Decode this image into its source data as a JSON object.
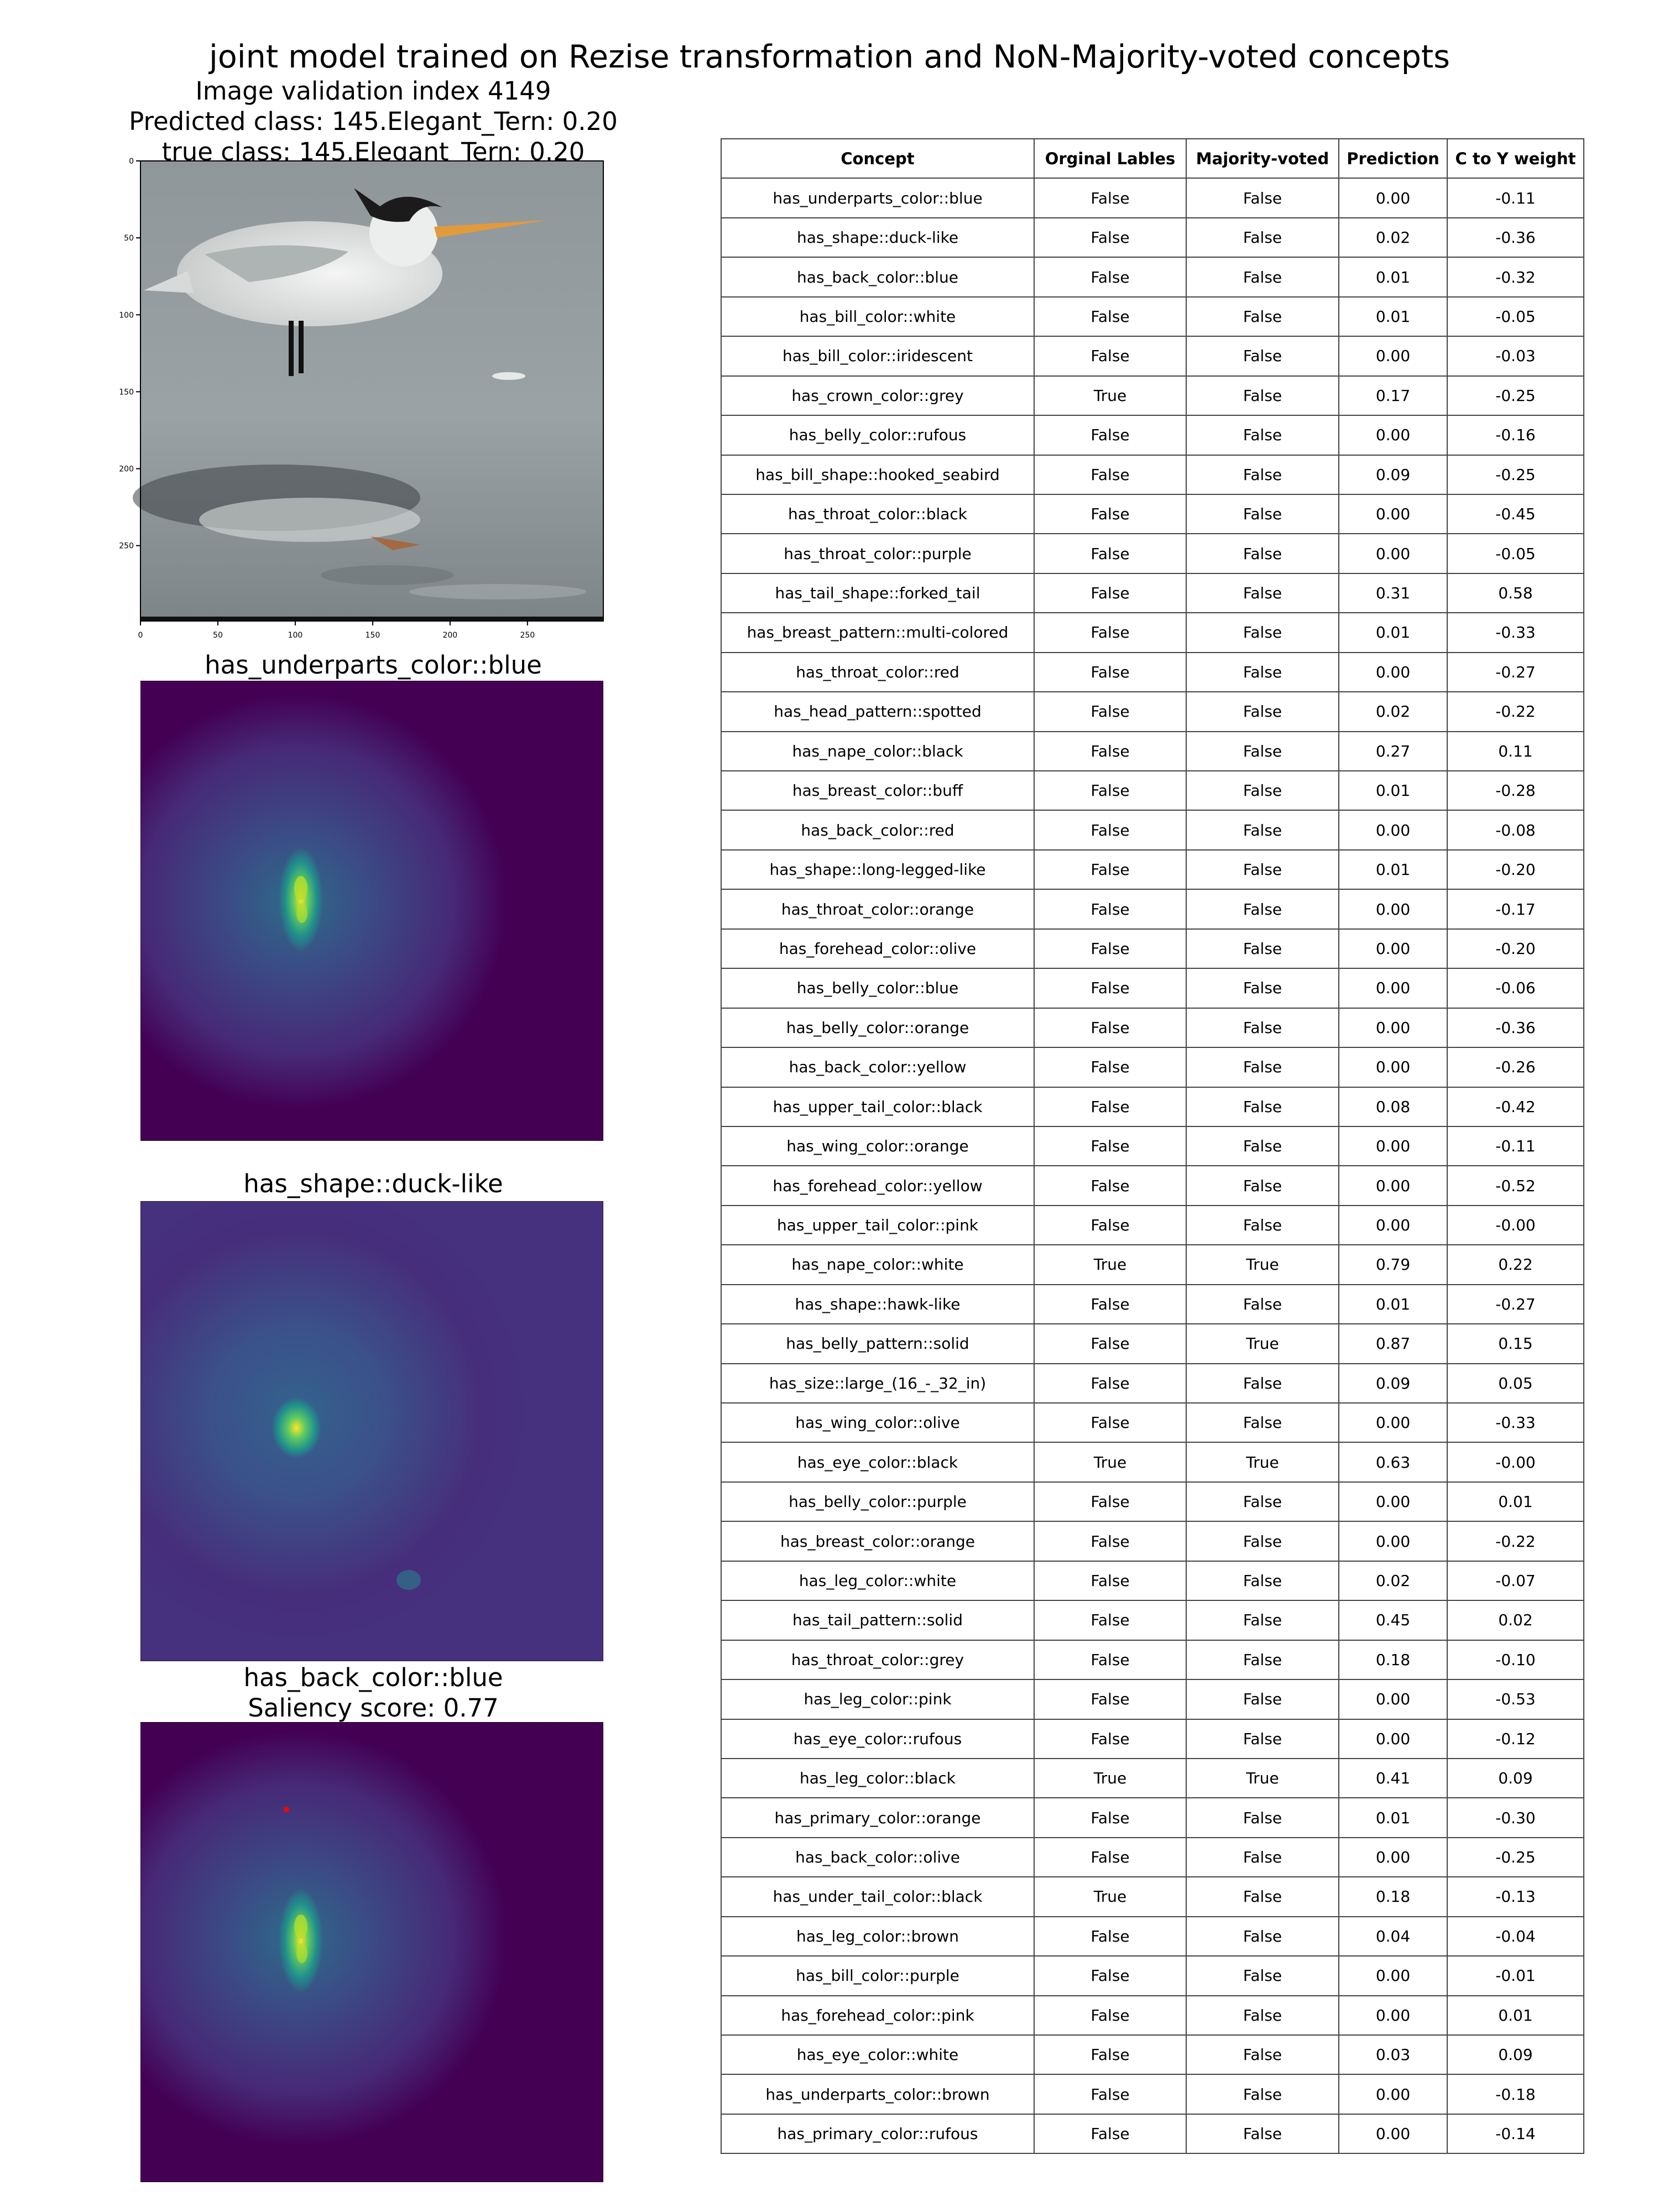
{
  "figure": {
    "title": "joint model trained on Rezise transformation and NoN-Majority-voted concepts",
    "image_header": [
      "Image validation index 4149",
      "Predicted class: 145.Elegant_Tern: 0.20",
      "true class: 145.Elegant_Tern: 0.20"
    ],
    "image_axis": {
      "x_ticks": [
        "0",
        "50",
        "100",
        "150",
        "200",
        "250"
      ],
      "y_ticks": [
        "0",
        "50",
        "100",
        "150",
        "200",
        "250"
      ],
      "xlim": [
        0,
        299
      ],
      "ylim": [
        0,
        299
      ]
    },
    "saliency_maps": [
      {
        "title": "has_underparts_color::blue"
      },
      {
        "title": "has_shape::duck-like"
      },
      {
        "title": "has_back_color::blue",
        "subtitle": "Saliency score: 0.77"
      }
    ],
    "colors": {
      "viridis_dark": "#440154",
      "viridis_mid": "#31688e",
      "viridis_green": "#35b779",
      "viridis_yellow": "#fde725",
      "marker": "#ff0000"
    }
  },
  "chart_data": {
    "type": "table",
    "columns": [
      "Concept",
      "Orginal Lables",
      "Majority-voted",
      "Prediction",
      "C to Y weight"
    ],
    "rows": [
      [
        "has_underparts_color::blue",
        "False",
        "False",
        "0.00",
        "-0.11"
      ],
      [
        "has_shape::duck-like",
        "False",
        "False",
        "0.02",
        "-0.36"
      ],
      [
        "has_back_color::blue",
        "False",
        "False",
        "0.01",
        "-0.32"
      ],
      [
        "has_bill_color::white",
        "False",
        "False",
        "0.01",
        "-0.05"
      ],
      [
        "has_bill_color::iridescent",
        "False",
        "False",
        "0.00",
        "-0.03"
      ],
      [
        "has_crown_color::grey",
        "True",
        "False",
        "0.17",
        "-0.25"
      ],
      [
        "has_belly_color::rufous",
        "False",
        "False",
        "0.00",
        "-0.16"
      ],
      [
        "has_bill_shape::hooked_seabird",
        "False",
        "False",
        "0.09",
        "-0.25"
      ],
      [
        "has_throat_color::black",
        "False",
        "False",
        "0.00",
        "-0.45"
      ],
      [
        "has_throat_color::purple",
        "False",
        "False",
        "0.00",
        "-0.05"
      ],
      [
        "has_tail_shape::forked_tail",
        "False",
        "False",
        "0.31",
        "0.58"
      ],
      [
        "has_breast_pattern::multi-colored",
        "False",
        "False",
        "0.01",
        "-0.33"
      ],
      [
        "has_throat_color::red",
        "False",
        "False",
        "0.00",
        "-0.27"
      ],
      [
        "has_head_pattern::spotted",
        "False",
        "False",
        "0.02",
        "-0.22"
      ],
      [
        "has_nape_color::black",
        "False",
        "False",
        "0.27",
        "0.11"
      ],
      [
        "has_breast_color::buff",
        "False",
        "False",
        "0.01",
        "-0.28"
      ],
      [
        "has_back_color::red",
        "False",
        "False",
        "0.00",
        "-0.08"
      ],
      [
        "has_shape::long-legged-like",
        "False",
        "False",
        "0.01",
        "-0.20"
      ],
      [
        "has_throat_color::orange",
        "False",
        "False",
        "0.00",
        "-0.17"
      ],
      [
        "has_forehead_color::olive",
        "False",
        "False",
        "0.00",
        "-0.20"
      ],
      [
        "has_belly_color::blue",
        "False",
        "False",
        "0.00",
        "-0.06"
      ],
      [
        "has_belly_color::orange",
        "False",
        "False",
        "0.00",
        "-0.36"
      ],
      [
        "has_back_color::yellow",
        "False",
        "False",
        "0.00",
        "-0.26"
      ],
      [
        "has_upper_tail_color::black",
        "False",
        "False",
        "0.08",
        "-0.42"
      ],
      [
        "has_wing_color::orange",
        "False",
        "False",
        "0.00",
        "-0.11"
      ],
      [
        "has_forehead_color::yellow",
        "False",
        "False",
        "0.00",
        "-0.52"
      ],
      [
        "has_upper_tail_color::pink",
        "False",
        "False",
        "0.00",
        "-0.00"
      ],
      [
        "has_nape_color::white",
        "True",
        "True",
        "0.79",
        "0.22"
      ],
      [
        "has_shape::hawk-like",
        "False",
        "False",
        "0.01",
        "-0.27"
      ],
      [
        "has_belly_pattern::solid",
        "False",
        "True",
        "0.87",
        "0.15"
      ],
      [
        "has_size::large_(16_-_32_in)",
        "False",
        "False",
        "0.09",
        "0.05"
      ],
      [
        "has_wing_color::olive",
        "False",
        "False",
        "0.00",
        "-0.33"
      ],
      [
        "has_eye_color::black",
        "True",
        "True",
        "0.63",
        "-0.00"
      ],
      [
        "has_belly_color::purple",
        "False",
        "False",
        "0.00",
        "0.01"
      ],
      [
        "has_breast_color::orange",
        "False",
        "False",
        "0.00",
        "-0.22"
      ],
      [
        "has_leg_color::white",
        "False",
        "False",
        "0.02",
        "-0.07"
      ],
      [
        "has_tail_pattern::solid",
        "False",
        "False",
        "0.45",
        "0.02"
      ],
      [
        "has_throat_color::grey",
        "False",
        "False",
        "0.18",
        "-0.10"
      ],
      [
        "has_leg_color::pink",
        "False",
        "False",
        "0.00",
        "-0.53"
      ],
      [
        "has_eye_color::rufous",
        "False",
        "False",
        "0.00",
        "-0.12"
      ],
      [
        "has_leg_color::black",
        "True",
        "True",
        "0.41",
        "0.09"
      ],
      [
        "has_primary_color::orange",
        "False",
        "False",
        "0.01",
        "-0.30"
      ],
      [
        "has_back_color::olive",
        "False",
        "False",
        "0.00",
        "-0.25"
      ],
      [
        "has_under_tail_color::black",
        "True",
        "False",
        "0.18",
        "-0.13"
      ],
      [
        "has_leg_color::brown",
        "False",
        "False",
        "0.04",
        "-0.04"
      ],
      [
        "has_bill_color::purple",
        "False",
        "False",
        "0.00",
        "-0.01"
      ],
      [
        "has_forehead_color::pink",
        "False",
        "False",
        "0.00",
        "0.01"
      ],
      [
        "has_eye_color::white",
        "False",
        "False",
        "0.03",
        "0.09"
      ],
      [
        "has_underparts_color::brown",
        "False",
        "False",
        "0.00",
        "-0.18"
      ],
      [
        "has_primary_color::rufous",
        "False",
        "False",
        "0.00",
        "-0.14"
      ]
    ]
  }
}
